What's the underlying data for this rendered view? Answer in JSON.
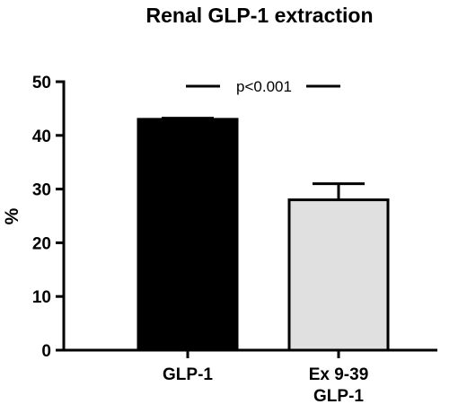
{
  "chart_data": {
    "type": "bar",
    "title": "Renal GLP-1 extraction",
    "xlabel": "",
    "ylabel": "%",
    "ylim": [
      0,
      50
    ],
    "yticks": [
      "0",
      "10",
      "20",
      "30",
      "40",
      "50"
    ],
    "grid": false,
    "categories": [
      [
        "GLP-1"
      ],
      [
        "Ex 9-39",
        "GLP-1"
      ]
    ],
    "values": [
      43,
      28
    ],
    "error_upper": [
      43.2,
      31
    ],
    "colors": [
      "#000000",
      "#e0e0e0"
    ],
    "annotation": "p<0.001"
  }
}
